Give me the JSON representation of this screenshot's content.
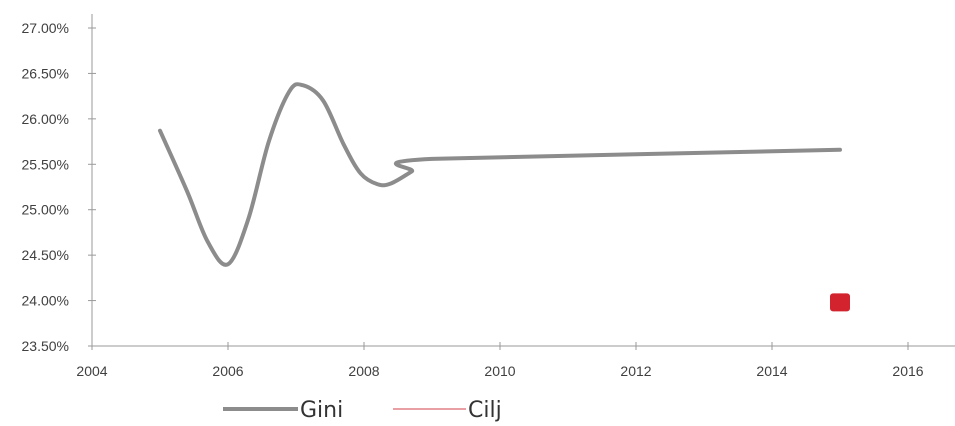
{
  "chart_data": {
    "type": "line",
    "xlim": [
      2004,
      2016
    ],
    "ylim": [
      23.5,
      27.0
    ],
    "x_ticks": [
      2004,
      2006,
      2008,
      2010,
      2012,
      2014,
      2016
    ],
    "x_tick_labels": [
      "2004",
      "2006",
      "2008",
      "2010",
      "2012",
      "2014",
      "2016"
    ],
    "y_ticks": [
      23.5,
      24.0,
      24.5,
      25.0,
      25.5,
      26.0,
      26.5,
      27.0
    ],
    "y_tick_labels": [
      "23.50%",
      "24.00%",
      "24.50%",
      "25.00%",
      "25.50%",
      "26.00%",
      "26.50%",
      "27.00%"
    ],
    "grid": false,
    "legend_position": "bottom",
    "series": [
      {
        "name": "Gini",
        "color": "#8c8c8c",
        "points": [
          [
            2005.0,
            25.87
          ],
          [
            2005.4,
            25.2
          ],
          [
            2005.7,
            24.65
          ],
          [
            2006.0,
            24.4
          ],
          [
            2006.3,
            24.9
          ],
          [
            2006.6,
            25.75
          ],
          [
            2006.9,
            26.3
          ],
          [
            2007.1,
            26.37
          ],
          [
            2007.4,
            26.2
          ],
          [
            2007.7,
            25.72
          ],
          [
            2007.95,
            25.4
          ],
          [
            2008.2,
            25.28
          ],
          [
            2008.4,
            25.29
          ],
          [
            2008.7,
            25.42
          ],
          [
            2009.0,
            25.56
          ],
          [
            2015.0,
            25.66
          ]
        ]
      },
      {
        "name": "Cilj",
        "color": "#e8a0a4",
        "marker_color": "#d3232f",
        "points": [
          [
            2015.0,
            23.98
          ]
        ]
      }
    ]
  }
}
